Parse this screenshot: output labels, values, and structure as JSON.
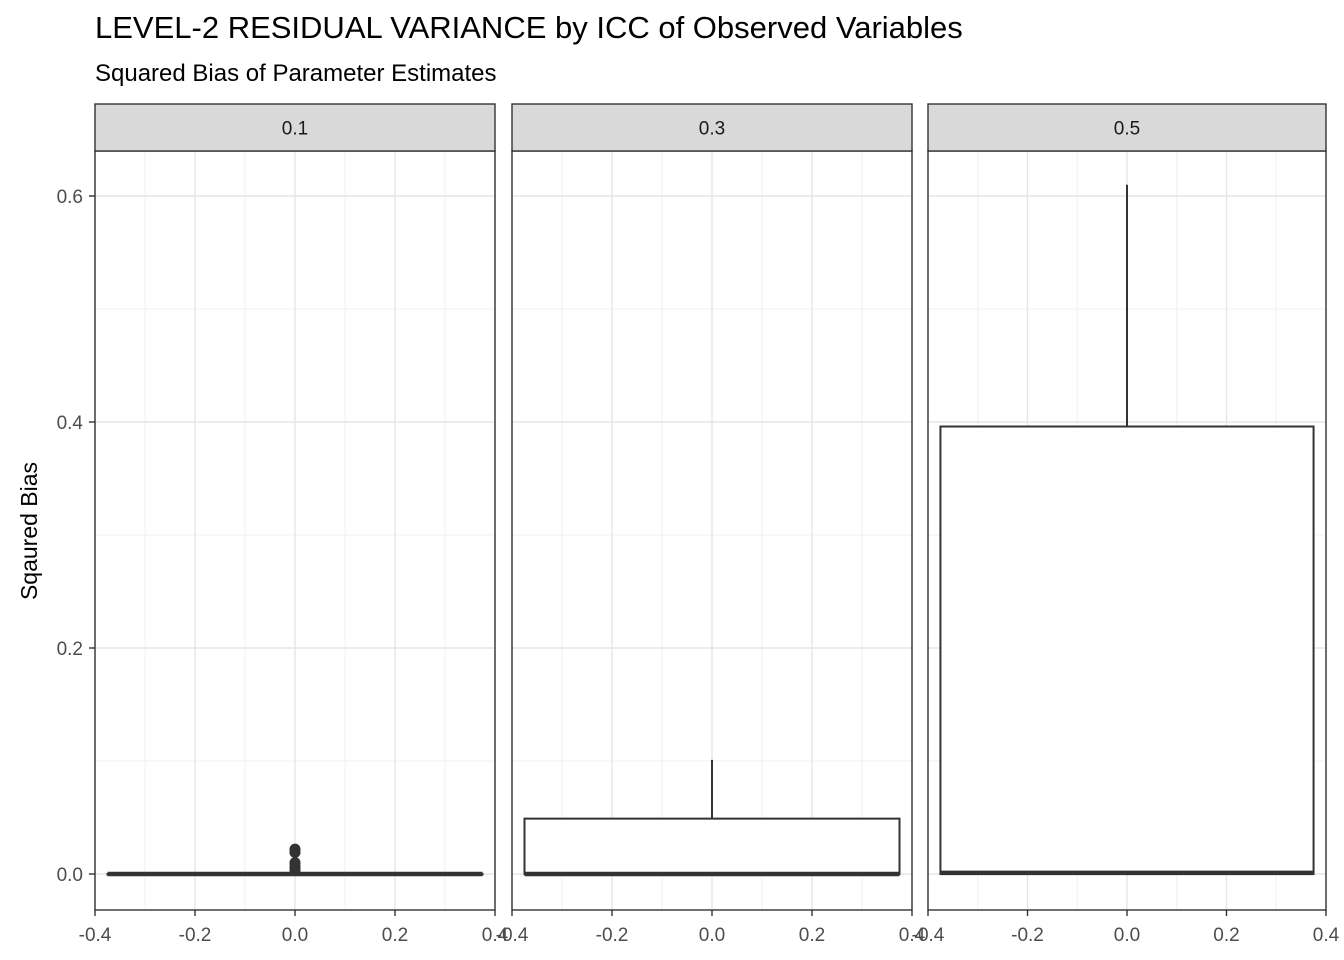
{
  "title": "LEVEL-2 RESIDUAL VARIANCE by ICC of Observed Variables",
  "subtitle": "Squared Bias of Parameter Estimates",
  "chart_data": {
    "type": "boxplot",
    "facet_variable_values": [
      "0.1",
      "0.3",
      "0.5"
    ],
    "ylabel": "Sqaured Bias",
    "xlabel": "",
    "xlim": [
      -0.4,
      0.4
    ],
    "ylim": [
      -0.03,
      0.65
    ],
    "x_ticks": [
      "-0.4",
      "-0.2",
      "0.0",
      "0.2",
      "0.4"
    ],
    "y_ticks": [
      "0.0",
      "0.2",
      "0.4",
      "0.6"
    ],
    "grid": true,
    "panels": [
      {
        "facet": "0.1",
        "box_xmin": -0.375,
        "box_xmax": 0.375,
        "q1": 0.0,
        "median": 0.0,
        "q3": 0.0,
        "whisker_low": 0.0,
        "whisker_high": 0.0,
        "outliers": [
          0.003,
          0.005,
          0.007,
          0.01,
          0.019,
          0.02,
          0.022
        ]
      },
      {
        "facet": "0.3",
        "box_xmin": -0.375,
        "box_xmax": 0.375,
        "q1": 0.0,
        "median": 0.0,
        "q3": 0.049,
        "whisker_low": 0.0,
        "whisker_high": 0.101,
        "outliers": []
      },
      {
        "facet": "0.5",
        "box_xmin": -0.375,
        "box_xmax": 0.375,
        "q1": 0.0,
        "median": 0.001,
        "q3": 0.396,
        "whisker_low": 0.0,
        "whisker_high": 0.61,
        "outliers": []
      }
    ]
  }
}
